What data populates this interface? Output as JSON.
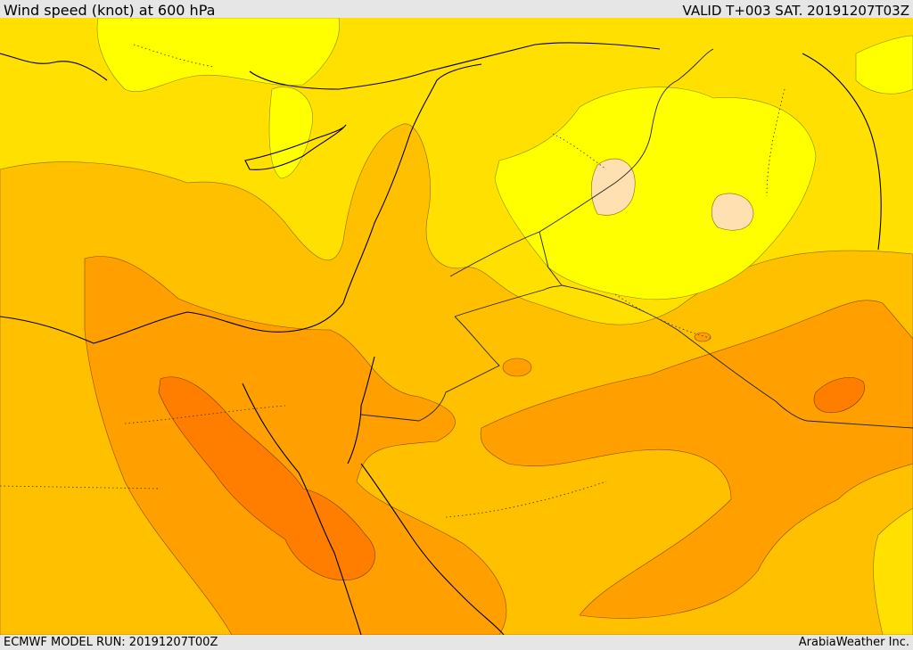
{
  "header": {
    "title": "Wind speed (knot) at 600 hPa",
    "valid": "VALID T+003 SAT. 20191207T03Z"
  },
  "footer": {
    "model_run": "ECMWF MODEL RUN: 20191207T00Z",
    "credit": "ArabiaWeather Inc."
  },
  "map": {
    "field": "wind speed at 600 hPa",
    "units": "knot",
    "palette": {
      "very_low": "#ffe0b0",
      "low": "#ffff00",
      "low_mid": "#ffe000",
      "mid": "#ffc000",
      "mid_high": "#ff9f00",
      "high": "#ff7e00",
      "coastline": "#000000",
      "border": "#222222"
    }
  }
}
